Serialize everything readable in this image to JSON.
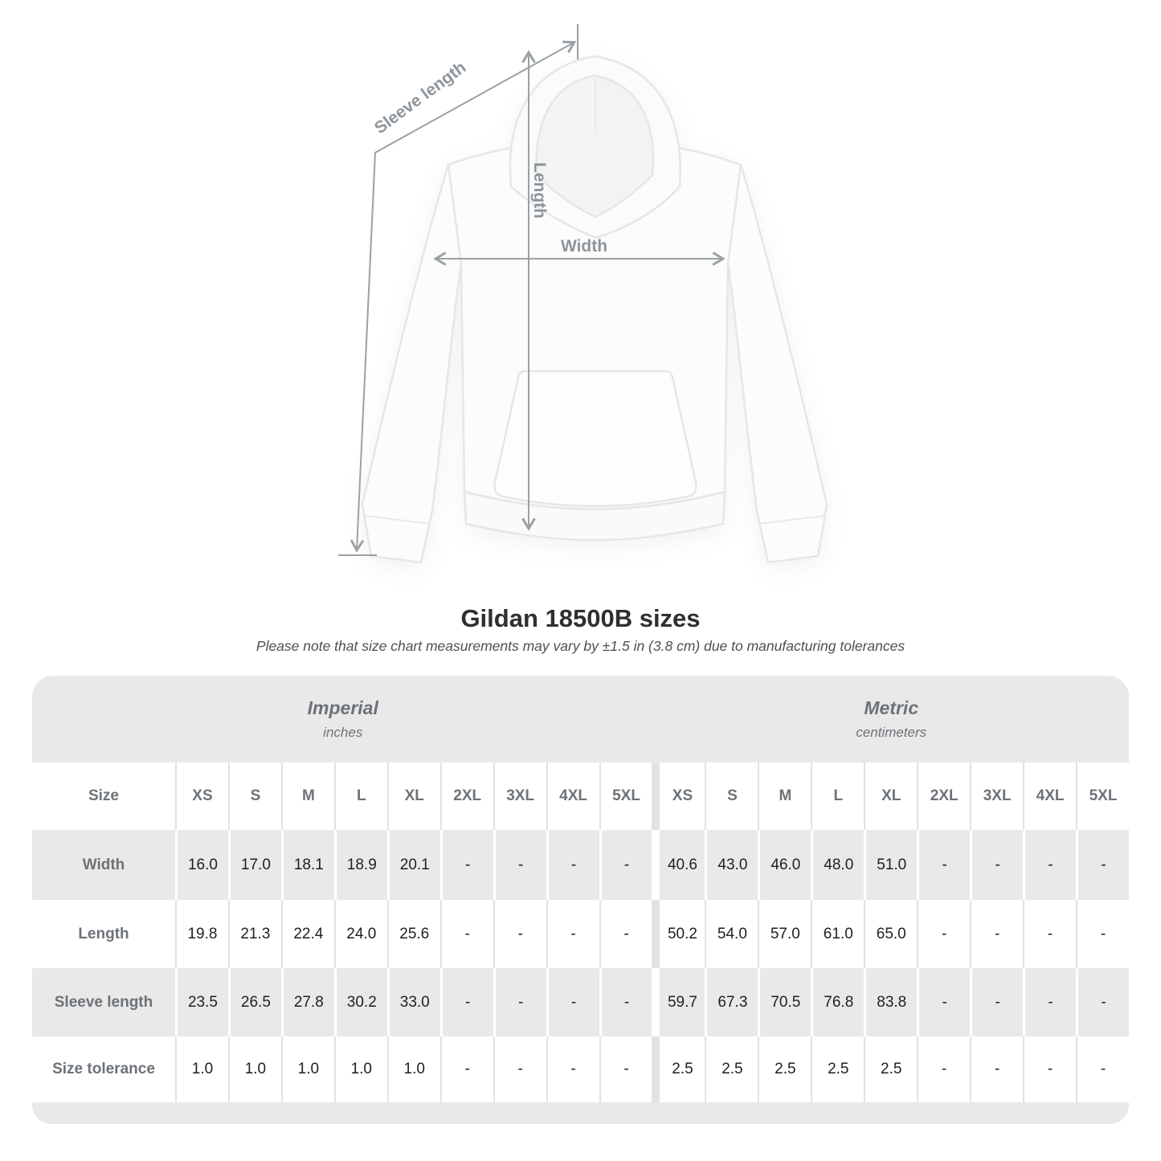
{
  "title": "Gildan 18500B sizes",
  "subtitle": "Please note that size chart measurements may vary by ±1.5 in (3.8 cm) due to manufacturing tolerances",
  "diagram": {
    "labels": {
      "sleeve_length": "Sleeve length",
      "length": "Length",
      "width": "Width"
    }
  },
  "table": {
    "size_label": "Size",
    "sections": [
      {
        "label": "Imperial",
        "unit": "inches"
      },
      {
        "label": "Metric",
        "unit": "centimeters"
      }
    ],
    "columns": [
      "XS",
      "S",
      "M",
      "L",
      "XL",
      "2XL",
      "3XL",
      "4XL",
      "5XL"
    ],
    "rows": [
      {
        "label": "Width",
        "imperial": [
          "16.0",
          "17.0",
          "18.1",
          "18.9",
          "20.1",
          "-",
          "-",
          "-",
          "-"
        ],
        "metric": [
          "40.6",
          "43.0",
          "46.0",
          "48.0",
          "51.0",
          "-",
          "-",
          "-",
          "-"
        ]
      },
      {
        "label": "Length",
        "imperial": [
          "19.8",
          "21.3",
          "22.4",
          "24.0",
          "25.6",
          "-",
          "-",
          "-",
          "-"
        ],
        "metric": [
          "50.2",
          "54.0",
          "57.0",
          "61.0",
          "65.0",
          "-",
          "-",
          "-",
          "-"
        ]
      },
      {
        "label": "Sleeve length",
        "imperial": [
          "23.5",
          "26.5",
          "27.8",
          "30.2",
          "33.0",
          "-",
          "-",
          "-",
          "-"
        ],
        "metric": [
          "59.7",
          "67.3",
          "70.5",
          "76.8",
          "83.8",
          "-",
          "-",
          "-",
          "-"
        ]
      },
      {
        "label": "Size tolerance",
        "imperial": [
          "1.0",
          "1.0",
          "1.0",
          "1.0",
          "1.0",
          "-",
          "-",
          "-",
          "-"
        ],
        "metric": [
          "2.5",
          "2.5",
          "2.5",
          "2.5",
          "2.5",
          "-",
          "-",
          "-",
          "-"
        ]
      }
    ]
  },
  "colors": {
    "band": "#e9e9e9",
    "label_text": "#6d7278",
    "value_text": "#1f1f1f",
    "arrow": "#9ba1a5",
    "arrow_label": "#8e959a"
  }
}
